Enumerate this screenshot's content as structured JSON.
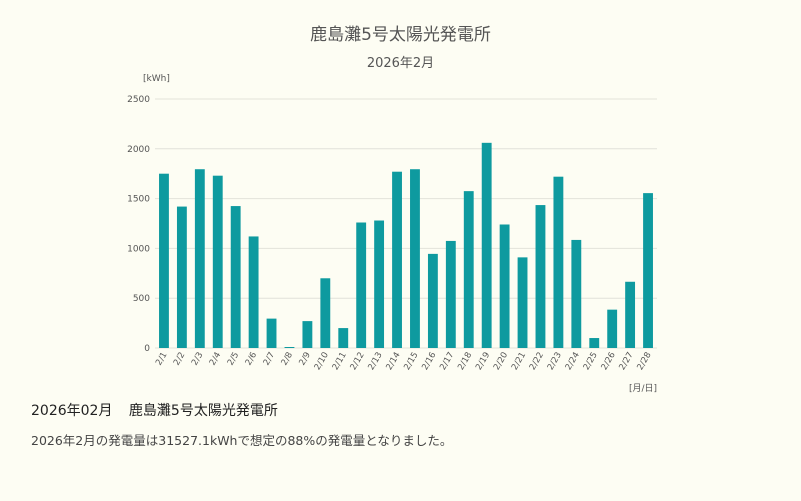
{
  "title": "鹿島灘5号太陽光発電所",
  "subtitle": "2026年2月",
  "summary": {
    "period": "2026年02月",
    "plant": "鹿島灘5号太陽光発電所",
    "text": "2026年2月の発電量は31527.1kWhで想定の88%の発電量となりました。"
  },
  "colors": {
    "bar": "#0e9a9f",
    "grid": "#e2e2da",
    "axis_text": "#555555"
  },
  "chart_data": {
    "type": "bar",
    "title": "鹿島灘5号太陽光発電所",
    "subtitle": "2026年2月",
    "ylabel": "[kWh]",
    "xlabel": "[月/日]",
    "ylim": [
      0,
      2500
    ],
    "yticks": [
      0,
      500,
      1000,
      1500,
      2000,
      2500
    ],
    "grid": true,
    "categories": [
      "2/1",
      "2/2",
      "2/3",
      "2/4",
      "2/5",
      "2/6",
      "2/7",
      "2/8",
      "2/9",
      "2/10",
      "2/11",
      "2/12",
      "2/13",
      "2/14",
      "2/15",
      "2/16",
      "2/17",
      "2/18",
      "2/19",
      "2/20",
      "2/21",
      "2/22",
      "2/23",
      "2/24",
      "2/25",
      "2/26",
      "2/27",
      "2/28"
    ],
    "values": [
      1750,
      1420,
      1795,
      1730,
      1425,
      1120,
      295,
      10,
      270,
      700,
      200,
      1260,
      1280,
      1770,
      1795,
      945,
      1075,
      1575,
      2060,
      1240,
      910,
      1435,
      1720,
      1085,
      100,
      385,
      665,
      1555
    ]
  }
}
